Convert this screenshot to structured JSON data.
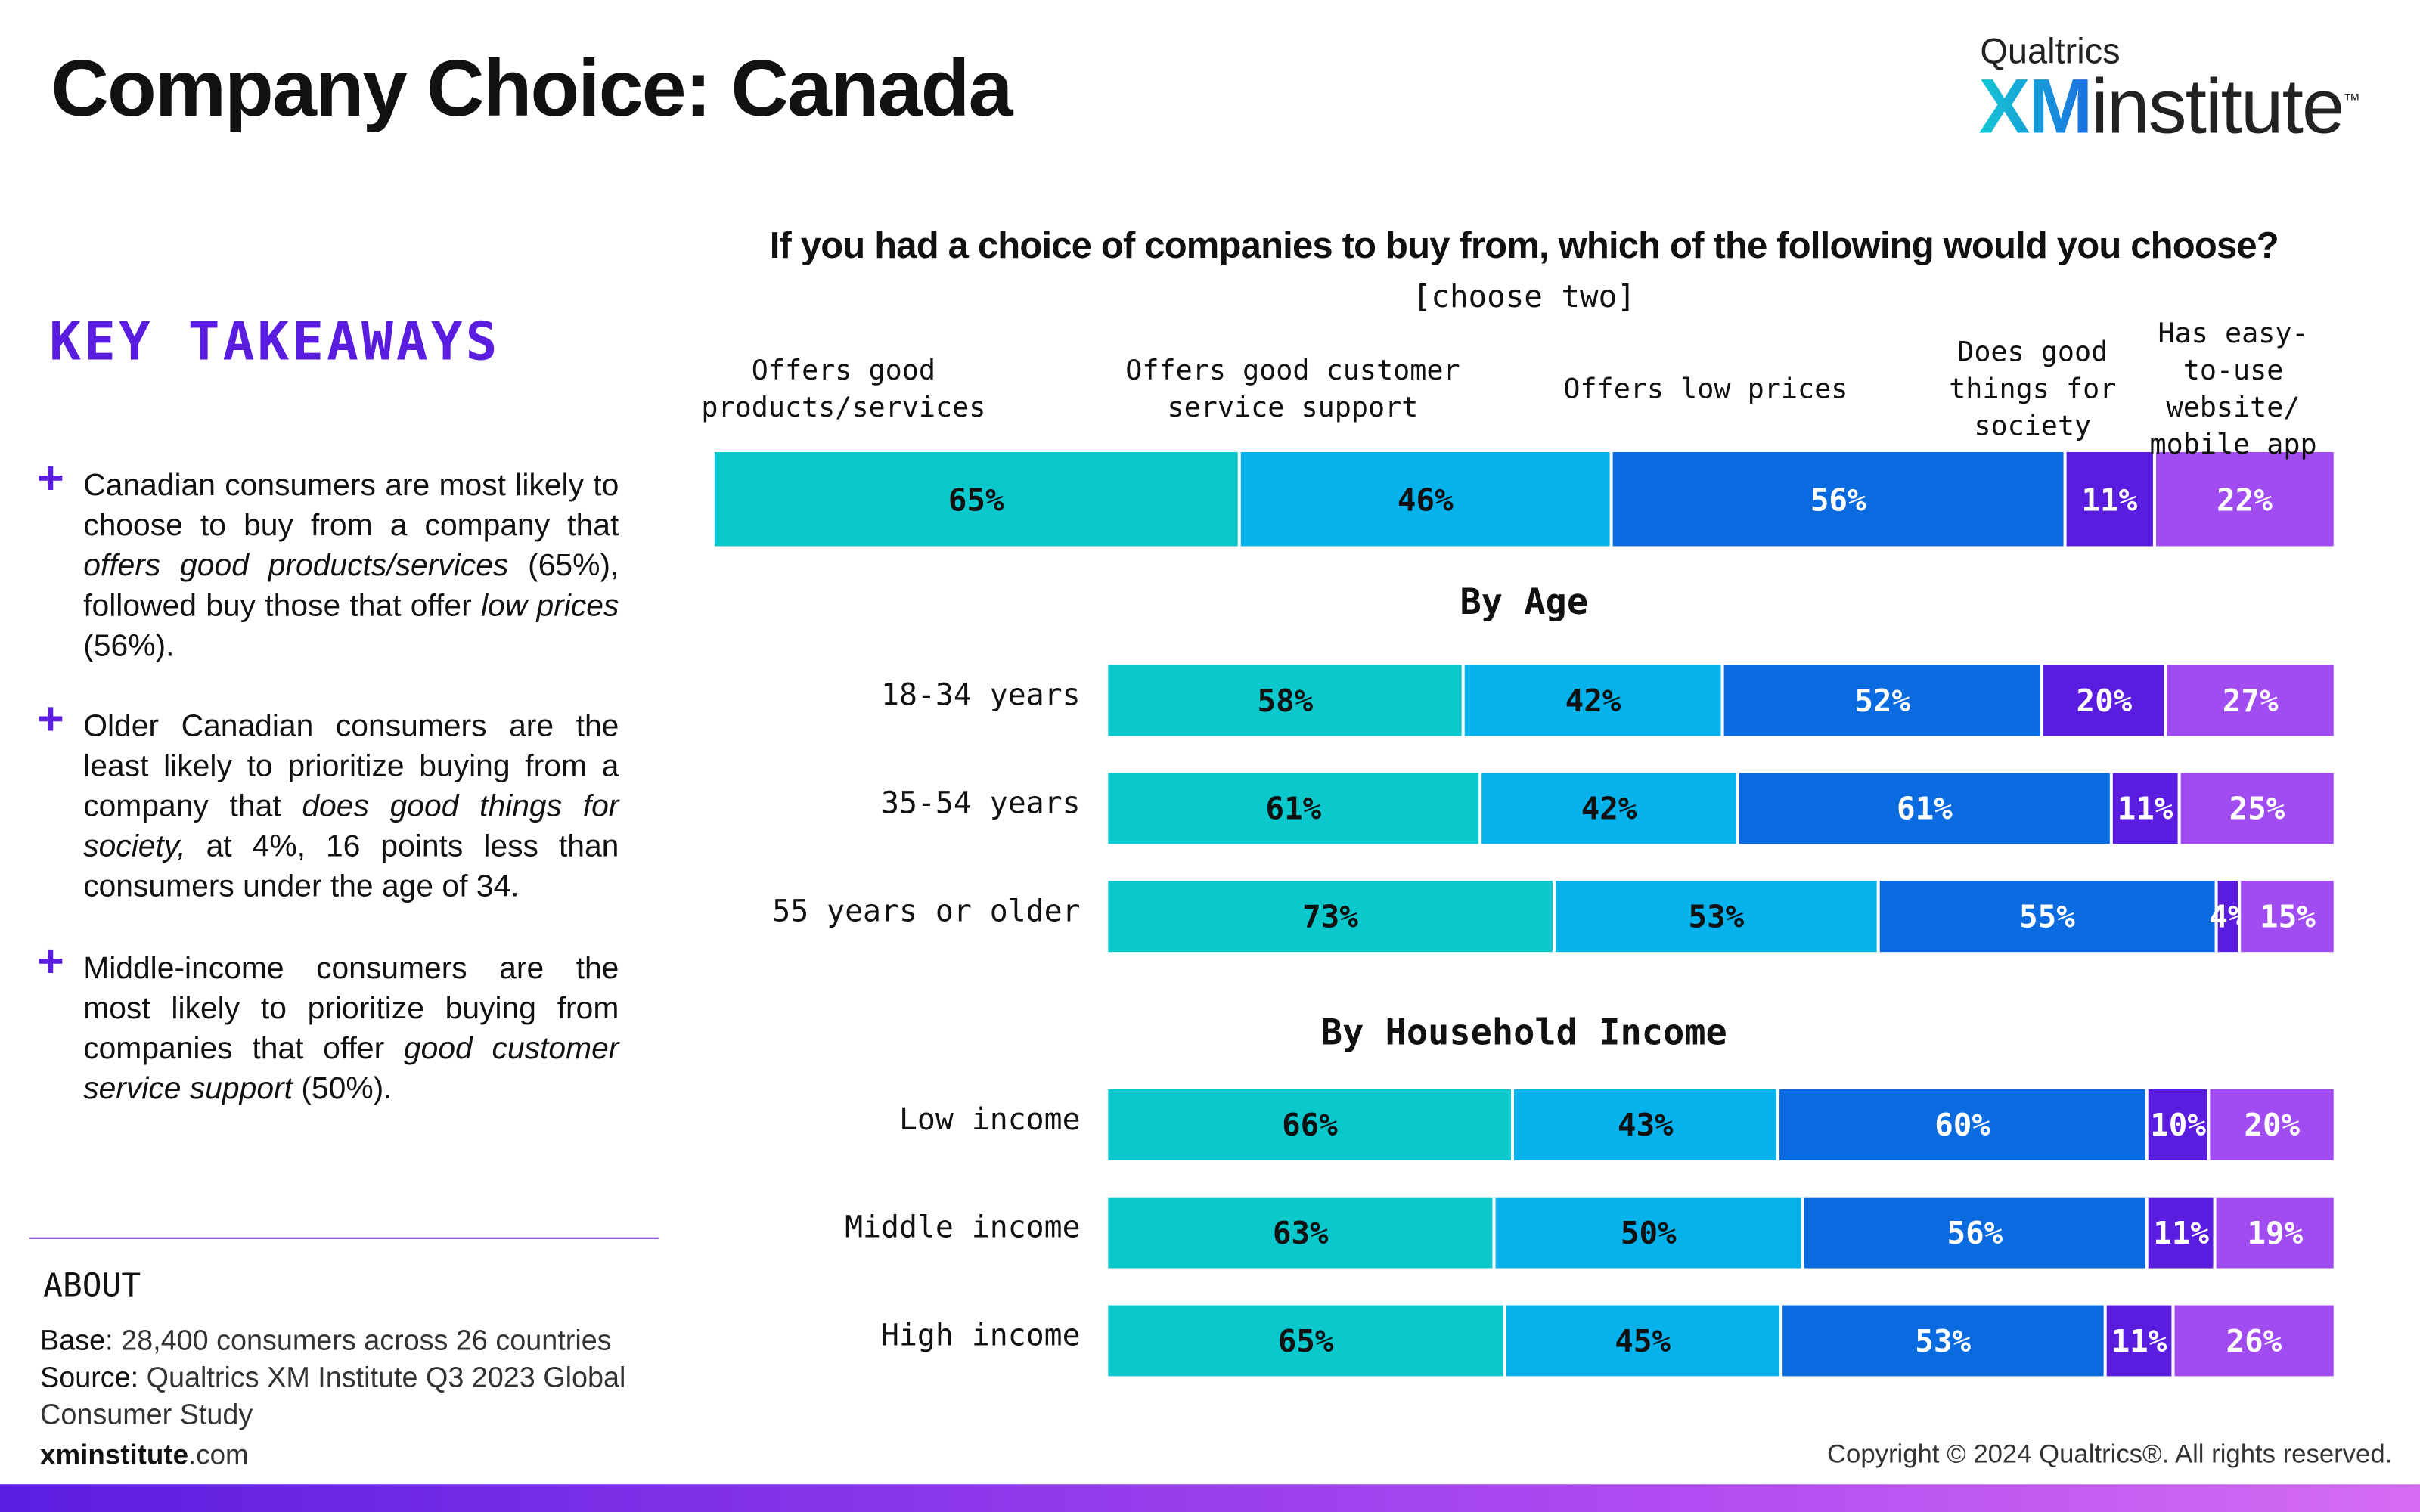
{
  "header": {
    "title": "Company Choice: Canada",
    "logo": {
      "brand": "Qualtrics",
      "xm": "XM",
      "institute": "institute",
      "tm": "™"
    }
  },
  "key_takeaways": {
    "heading": "KEY TAKEAWAYS",
    "marker": "+",
    "items": [
      [
        {
          "text": "Canadian consumers are most likely to choose to buy from a company that "
        },
        {
          "text": "offers good products/services",
          "italic": true
        },
        {
          "text": " (65%), followed buy those that offer "
        },
        {
          "text": "low prices",
          "italic": true
        },
        {
          "text": " (56%)."
        }
      ],
      [
        {
          "text": "Older Canadian consumers are the least likely to prioritize buying from a company that "
        },
        {
          "text": "does good things for society,",
          "italic": true
        },
        {
          "text": " at 4%, 16 points less than consumers under the age of 34."
        }
      ],
      [
        {
          "text": "Middle-income consumers are the most likely to prioritize buying from companies that offer "
        },
        {
          "text": "good customer service support",
          "italic": true
        },
        {
          "text": " (50%)."
        }
      ]
    ]
  },
  "about": {
    "heading": "ABOUT",
    "base_label": "Base:",
    "base": "28,400 consumers across 26 countries",
    "source_label": "Source:",
    "source": "Qualtrics XM Institute Q3 2023 Global Consumer Study"
  },
  "footer": {
    "site_bold": "xminstitute",
    "site_rest": ".com",
    "copyright": "Copyright © 2024 Qualtrics®. All rights reserved."
  },
  "chart_data": [
    {
      "type": "bar",
      "orientation": "horizontal",
      "stacked": true,
      "title": "If you had a choice of companies to buy from, which of the following would you choose?",
      "subtitle": "[choose two]",
      "categories": [
        null
      ],
      "series": [
        {
          "name": "Offers good products/services",
          "color": "#0bc8cd",
          "label_color": "#111111",
          "values": [
            65
          ],
          "value_labels": [
            "65%"
          ]
        },
        {
          "name": "Offers good customer service support",
          "color": "#05b2ec",
          "label_color": "#111111",
          "values": [
            46
          ],
          "value_labels": [
            "46%"
          ]
        },
        {
          "name": "Offers low prices",
          "color": "#0a6adf",
          "label_color": "#ffffff",
          "values": [
            56
          ],
          "value_labels": [
            "56%"
          ]
        },
        {
          "name": "Does good things for society",
          "color": "#5a1de0",
          "label_color": "#ffffff",
          "values": [
            11
          ],
          "value_labels": [
            "11%"
          ]
        },
        {
          "name": "Has easy-to-use website/ mobile app",
          "color": "#a04cf0",
          "label_color": "#ffffff",
          "values": [
            22
          ],
          "value_labels": [
            "22%"
          ]
        }
      ]
    },
    {
      "type": "bar",
      "orientation": "horizontal",
      "stacked": true,
      "title": "By Age",
      "categories": [
        "18-34 years",
        "35-54 years",
        "55 years or older"
      ],
      "series": [
        {
          "color": "#0bc8cd",
          "label_color": "#111111",
          "values": [
            58,
            61,
            73
          ],
          "value_labels": [
            "58%",
            "61%",
            "73%"
          ]
        },
        {
          "color": "#05b2ec",
          "label_color": "#111111",
          "values": [
            42,
            42,
            53
          ],
          "value_labels": [
            "42%",
            "42%",
            "53%"
          ]
        },
        {
          "color": "#0a6adf",
          "label_color": "#ffffff",
          "values": [
            52,
            61,
            55
          ],
          "value_labels": [
            "52%",
            "61%",
            "55%"
          ]
        },
        {
          "color": "#5a1de0",
          "label_color": "#ffffff",
          "values": [
            20,
            11,
            4
          ],
          "value_labels": [
            "20%",
            "11%",
            "4%"
          ]
        },
        {
          "color": "#a04cf0",
          "label_color": "#ffffff",
          "values": [
            27,
            25,
            15
          ],
          "value_labels": [
            "27%",
            "25%",
            "15%"
          ]
        }
      ]
    },
    {
      "type": "bar",
      "orientation": "horizontal",
      "stacked": true,
      "title": "By Household Income",
      "categories": [
        "Low income",
        "Middle income",
        "High income"
      ],
      "series": [
        {
          "color": "#0bc8cd",
          "label_color": "#111111",
          "values": [
            66,
            63,
            65
          ],
          "value_labels": [
            "66%",
            "63%",
            "65%"
          ]
        },
        {
          "color": "#05b2ec",
          "label_color": "#111111",
          "values": [
            43,
            50,
            45
          ],
          "value_labels": [
            "43%",
            "50%",
            "45%"
          ]
        },
        {
          "color": "#0a6adf",
          "label_color": "#ffffff",
          "values": [
            60,
            56,
            53
          ],
          "value_labels": [
            "60%",
            "56%",
            "53%"
          ]
        },
        {
          "color": "#5a1de0",
          "label_color": "#ffffff",
          "values": [
            10,
            11,
            11
          ],
          "value_labels": [
            "10%",
            "11%",
            "11%"
          ]
        },
        {
          "color": "#a04cf0",
          "label_color": "#ffffff",
          "values": [
            20,
            19,
            26
          ],
          "value_labels": [
            "20%",
            "19%",
            "26%"
          ]
        }
      ]
    }
  ]
}
